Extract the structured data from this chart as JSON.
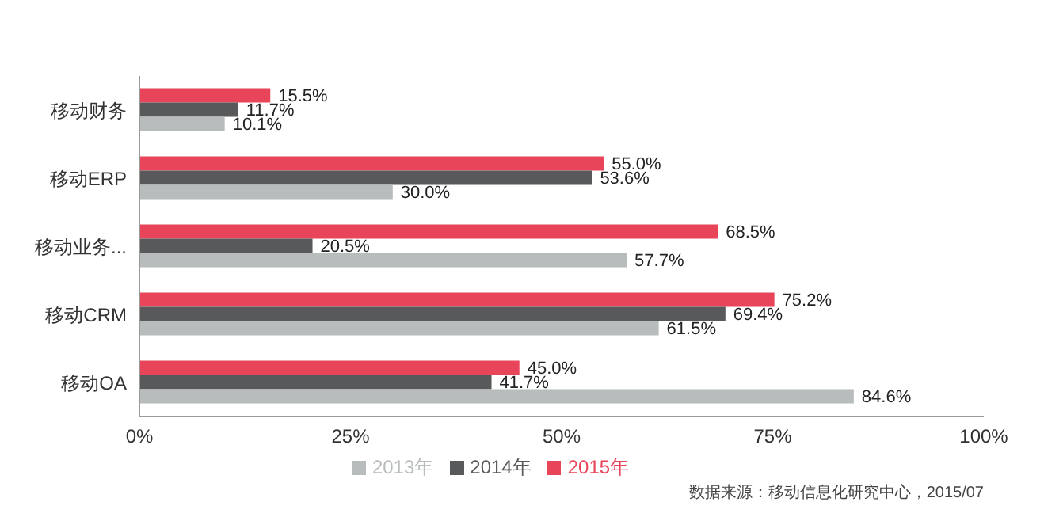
{
  "chart_data": {
    "type": "bar",
    "orientation": "horizontal",
    "categories": [
      "移动财务",
      "移动ERP",
      "移动业务...",
      "移动CRM",
      "移动OA"
    ],
    "series": [
      {
        "name": "2015年",
        "color": "#e8455a",
        "values": [
          15.5,
          55.0,
          68.5,
          75.2,
          45.0
        ],
        "value_labels": [
          "15.5%",
          "55.0%",
          "68.5%",
          "75.2%",
          "45.0%"
        ]
      },
      {
        "name": "2014年",
        "color": "#58595b",
        "values": [
          11.7,
          53.6,
          20.5,
          69.4,
          41.7
        ],
        "value_labels": [
          "11.7%",
          "53.6%",
          "20.5%",
          "69.4%",
          "41.7%"
        ]
      },
      {
        "name": "2013年",
        "color": "#b8bcbc",
        "values": [
          10.1,
          30.0,
          57.7,
          61.5,
          84.6
        ],
        "value_labels": [
          "10.1%",
          "30.0%",
          "57.7%",
          "61.5%",
          "84.6%"
        ]
      }
    ],
    "xlim": [
      0,
      100
    ],
    "xticks": [
      {
        "value": 0,
        "label": "0%"
      },
      {
        "value": 25,
        "label": "25%"
      },
      {
        "value": 50,
        "label": "50%"
      },
      {
        "value": 75,
        "label": "75%"
      },
      {
        "value": 100,
        "label": "100%"
      }
    ],
    "legend": "bottom",
    "annotations": [
      "数据来源：移动信息化研究中心，2015/07"
    ]
  }
}
